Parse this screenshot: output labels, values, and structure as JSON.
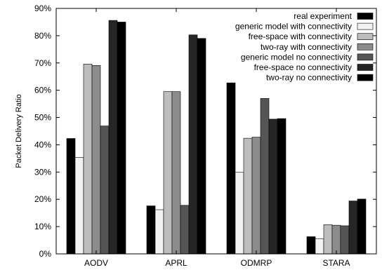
{
  "chart_data": {
    "type": "bar",
    "title": "",
    "xlabel": "",
    "ylabel": "Packet Delivery Ratio",
    "ylim": [
      0,
      90
    ],
    "y_ticks": [
      "0%",
      "10%",
      "20%",
      "30%",
      "40%",
      "50%",
      "60%",
      "70%",
      "80%",
      "90%"
    ],
    "y_tick_values": [
      0,
      10,
      20,
      30,
      40,
      50,
      60,
      70,
      80,
      90
    ],
    "grid": false,
    "legend_position": "top-right",
    "categories": [
      "AODV",
      "APRL",
      "ODMRP",
      "STARA"
    ],
    "series": [
      {
        "name": "real experiment",
        "color": "#000000",
        "values": [
          42.3,
          17.6,
          62.7,
          6.3
        ]
      },
      {
        "name": "generic model with connectivity",
        "color": "#f2f2f2",
        "values": [
          35.4,
          16.2,
          29.9,
          5.6
        ]
      },
      {
        "name": "free-space with connectivity",
        "color": "#bdbdbd",
        "values": [
          69.6,
          59.5,
          42.4,
          10.7
        ]
      },
      {
        "name": "two-ray with connectivity",
        "color": "#8c8c8c",
        "values": [
          69.1,
          59.5,
          42.8,
          10.5
        ]
      },
      {
        "name": "generic model no connectivity",
        "color": "#555555",
        "values": [
          46.9,
          17.8,
          57.0,
          10.3
        ]
      },
      {
        "name": "free-space no connectivity",
        "color": "#262626",
        "values": [
          85.6,
          80.3,
          49.4,
          19.4
        ]
      },
      {
        "name": "two-ray no connectivity",
        "color": "#000000",
        "values": [
          85.0,
          79.0,
          49.6,
          20.1
        ]
      }
    ]
  }
}
